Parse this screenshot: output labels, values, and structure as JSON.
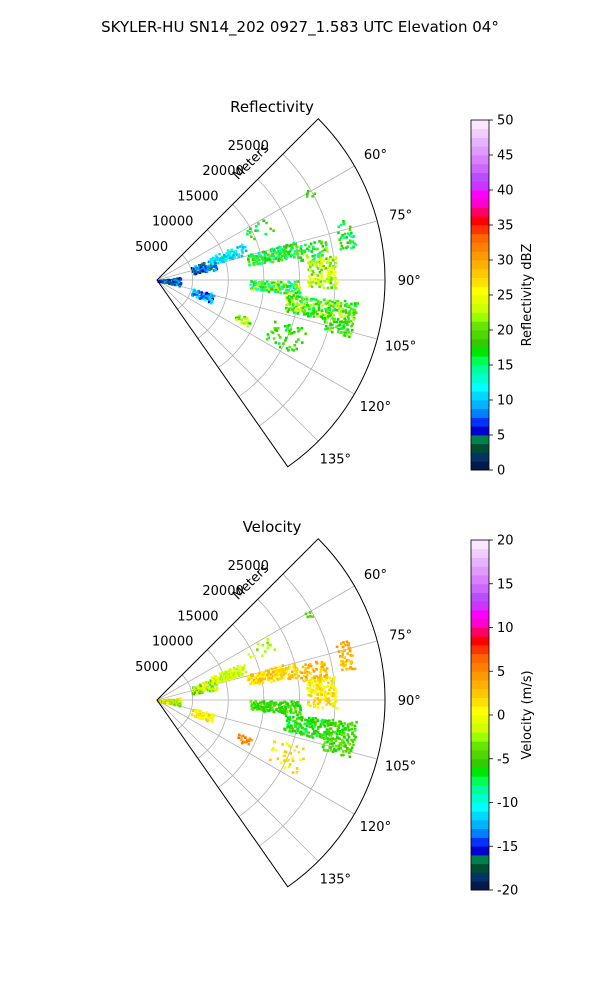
{
  "figure": {
    "title": "SKYLER-HU  SN14_202  0927_1.583 UTC Elevation 04°"
  },
  "chart_data": [
    {
      "type": "heatmap",
      "subtype": "polar-sector-ppi",
      "title": "Reflectivity",
      "radial_axis_label": "Meters",
      "radial_ticks": [
        5000,
        10000,
        15000,
        20000,
        25000
      ],
      "radial_tick_labels": [
        "5000",
        "10000",
        "15000",
        "20000",
        "25000"
      ],
      "radial_range": [
        0,
        32000
      ],
      "angular_ticks_deg": [
        60,
        75,
        90,
        105,
        120,
        135
      ],
      "angular_tick_labels": [
        "60°",
        "75°",
        "90°",
        "105°",
        "120°",
        "135°"
      ],
      "angular_range_deg": [
        45,
        145
      ],
      "grid": true,
      "colorbar": {
        "label": "Reflectivity dBZ",
        "range": [
          0,
          50
        ],
        "ticks": [
          0,
          5,
          10,
          15,
          20,
          25,
          30,
          35,
          40,
          45,
          50
        ],
        "tick_labels": [
          "0",
          "5",
          "10",
          "15",
          "20",
          "25",
          "30",
          "35",
          "40",
          "45",
          "50"
        ],
        "colors": [
          "#001a4d",
          "#003366",
          "#004d33",
          "#00804d",
          "#0000cc",
          "#0033ff",
          "#0080ff",
          "#00b3ff",
          "#00d9ff",
          "#00ffff",
          "#00ffcc",
          "#00ff99",
          "#00ff55",
          "#00e600",
          "#33cc00",
          "#4dd900",
          "#66e600",
          "#99ff00",
          "#ccff00",
          "#e6ff00",
          "#ffff00",
          "#ffe000",
          "#ffc800",
          "#ffb000",
          "#ff9900",
          "#ff8000",
          "#ff6600",
          "#ff3300",
          "#ff0000",
          "#ff0066",
          "#ff00cc",
          "#ff00ff",
          "#cc33ff",
          "#b84dff",
          "#cc66ff",
          "#d980ff",
          "#e099ff",
          "#e6b3ff",
          "#f0ccff",
          "#fae6ff"
        ]
      },
      "echo_regions": [
        {
          "r_range": [
            0,
            3000
          ],
          "az_range": [
            82,
            102
          ],
          "value_range": [
            2,
            10
          ],
          "density": 0.5
        },
        {
          "r_range": [
            5000,
            8500
          ],
          "az_range": [
            68,
            79
          ],
          "value_range": [
            3,
            11
          ],
          "density": 0.45
        },
        {
          "r_range": [
            8000,
            13000
          ],
          "az_range": [
            66,
            73
          ],
          "value_range": [
            9,
            14
          ],
          "density": 0.5
        },
        {
          "r_range": [
            5000,
            8000
          ],
          "az_range": [
            103,
            112
          ],
          "value_range": [
            5,
            12
          ],
          "density": 0.4
        },
        {
          "r_range": [
            13000,
            20000
          ],
          "az_range": [
            74,
            80
          ],
          "value_range": [
            13,
            21
          ],
          "density": 0.7
        },
        {
          "r_range": [
            20000,
            24000
          ],
          "az_range": [
            76,
            82
          ],
          "value_range": [
            14,
            22
          ],
          "density": 0.55
        },
        {
          "r_range": [
            21000,
            25000
          ],
          "az_range": [
            82,
            92
          ],
          "value_range": [
            18,
            26
          ],
          "density": 0.7
        },
        {
          "r_range": [
            13000,
            20000
          ],
          "az_range": [
            90,
            95
          ],
          "value_range": [
            12,
            25
          ],
          "density": 0.75
        },
        {
          "r_range": [
            18000,
            24000
          ],
          "az_range": [
            96,
            103
          ],
          "value_range": [
            15,
            24
          ],
          "density": 0.7
        },
        {
          "r_range": [
            24000,
            28000
          ],
          "az_range": [
            96,
            106
          ],
          "value_range": [
            15,
            23
          ],
          "density": 0.7
        },
        {
          "r_range": [
            26000,
            28000
          ],
          "az_range": [
            72,
            80
          ],
          "value_range": [
            13,
            20
          ],
          "density": 0.45
        },
        {
          "r_range": [
            12000,
            14000
          ],
          "az_range": [
            112,
            116
          ],
          "value_range": [
            17,
            25
          ],
          "density": 0.4
        },
        {
          "r_range": [
            17000,
            22000
          ],
          "az_range": [
            108,
            118
          ],
          "value_range": [
            15,
            22
          ],
          "density": 0.2
        },
        {
          "r_range": [
            14000,
            18000
          ],
          "az_range": [
            60,
            66
          ],
          "value_range": [
            15,
            20
          ],
          "density": 0.15
        },
        {
          "r_range": [
            24000,
            25000
          ],
          "az_range": [
            59,
            61
          ],
          "value_range": [
            16,
            20
          ],
          "density": 0.5
        }
      ]
    },
    {
      "type": "heatmap",
      "subtype": "polar-sector-ppi",
      "title": "Velocity",
      "radial_axis_label": "Meters",
      "radial_ticks": [
        5000,
        10000,
        15000,
        20000,
        25000
      ],
      "radial_tick_labels": [
        "5000",
        "10000",
        "15000",
        "20000",
        "25000"
      ],
      "radial_range": [
        0,
        32000
      ],
      "angular_ticks_deg": [
        60,
        75,
        90,
        105,
        120,
        135
      ],
      "angular_tick_labels": [
        "60°",
        "75°",
        "90°",
        "105°",
        "120°",
        "135°"
      ],
      "angular_range_deg": [
        45,
        145
      ],
      "grid": true,
      "colorbar": {
        "label": "Velocity (m/s)",
        "range": [
          -20,
          20
        ],
        "ticks": [
          -20,
          -15,
          -10,
          -5,
          0,
          5,
          10,
          15,
          20
        ],
        "tick_labels": [
          "-20",
          "-15",
          "-10",
          "-5",
          "0",
          "5",
          "10",
          "15",
          "20"
        ],
        "colors": [
          "#001a4d",
          "#003366",
          "#004d33",
          "#00804d",
          "#0000cc",
          "#0033ff",
          "#0080ff",
          "#00b3ff",
          "#00d9ff",
          "#00ffff",
          "#00ffcc",
          "#00ff99",
          "#00ff55",
          "#00e600",
          "#33cc00",
          "#4dd900",
          "#66e600",
          "#99ff00",
          "#ccff00",
          "#e6ff00",
          "#ffff00",
          "#ffe000",
          "#ffc800",
          "#ffb000",
          "#ff9900",
          "#ff8000",
          "#ff6600",
          "#ff3300",
          "#ff0000",
          "#ff0066",
          "#ff00cc",
          "#ff00ff",
          "#cc33ff",
          "#b84dff",
          "#cc66ff",
          "#d980ff",
          "#e099ff",
          "#e6b3ff",
          "#f0ccff",
          "#fae6ff"
        ]
      },
      "echo_regions": [
        {
          "r_range": [
            0,
            3000
          ],
          "az_range": [
            82,
            102
          ],
          "value_range": [
            -5,
            4
          ],
          "density": 0.5
        },
        {
          "r_range": [
            5000,
            8500
          ],
          "az_range": [
            68,
            79
          ],
          "value_range": [
            -6,
            2
          ],
          "density": 0.45
        },
        {
          "r_range": [
            8000,
            13000
          ],
          "az_range": [
            66,
            73
          ],
          "value_range": [
            -3,
            1
          ],
          "density": 0.5
        },
        {
          "r_range": [
            5000,
            8000
          ],
          "az_range": [
            103,
            112
          ],
          "value_range": [
            -1,
            3
          ],
          "density": 0.4
        },
        {
          "r_range": [
            13000,
            20000
          ],
          "az_range": [
            74,
            80
          ],
          "value_range": [
            0,
            4
          ],
          "density": 0.7
        },
        {
          "r_range": [
            20000,
            24000
          ],
          "az_range": [
            76,
            82
          ],
          "value_range": [
            1,
            5
          ],
          "density": 0.55
        },
        {
          "r_range": [
            21000,
            25000
          ],
          "az_range": [
            82,
            92
          ],
          "value_range": [
            -1,
            3
          ],
          "density": 0.7
        },
        {
          "r_range": [
            13000,
            20000
          ],
          "az_range": [
            90,
            95
          ],
          "value_range": [
            -7,
            -3
          ],
          "density": 0.75
        },
        {
          "r_range": [
            18000,
            24000
          ],
          "az_range": [
            96,
            103
          ],
          "value_range": [
            -8,
            -4
          ],
          "density": 0.7
        },
        {
          "r_range": [
            24000,
            28000
          ],
          "az_range": [
            96,
            106
          ],
          "value_range": [
            -7,
            -3
          ],
          "density": 0.7
        },
        {
          "r_range": [
            26000,
            28000
          ],
          "az_range": [
            72,
            80
          ],
          "value_range": [
            2,
            5
          ],
          "density": 0.45
        },
        {
          "r_range": [
            12000,
            14000
          ],
          "az_range": [
            112,
            116
          ],
          "value_range": [
            4,
            8
          ],
          "density": 0.4
        },
        {
          "r_range": [
            17000,
            22000
          ],
          "az_range": [
            108,
            118
          ],
          "value_range": [
            -1,
            3
          ],
          "density": 0.2
        },
        {
          "r_range": [
            14000,
            18000
          ],
          "az_range": [
            60,
            66
          ],
          "value_range": [
            -4,
            0
          ],
          "density": 0.15
        },
        {
          "r_range": [
            24000,
            25000
          ],
          "az_range": [
            59,
            61
          ],
          "value_range": [
            -5,
            -3
          ],
          "density": 0.5
        }
      ]
    }
  ]
}
